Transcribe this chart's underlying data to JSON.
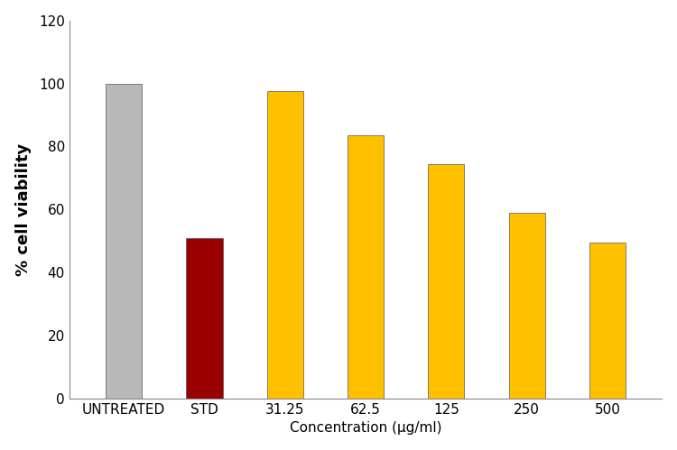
{
  "categories": [
    "UNTREATED",
    "STD",
    "31.25",
    "62.5",
    "125",
    "250",
    "500"
  ],
  "values": [
    100,
    51,
    97.5,
    83.5,
    74.5,
    59,
    49.5
  ],
  "bar_colors": [
    "#b8b8b8",
    "#9b0000",
    "#ffc000",
    "#ffc000",
    "#ffc000",
    "#ffc000",
    "#ffc000"
  ],
  "bar_edge_color": "#555555",
  "bar_edge_width": 0.5,
  "ylabel": "% cell viability",
  "xlabel": "Concentration (µg/ml)",
  "ylim": [
    0,
    120
  ],
  "yticks": [
    0,
    20,
    40,
    60,
    80,
    100,
    120
  ],
  "background_color": "#ffffff",
  "bar_width": 0.45,
  "ylabel_fontsize": 13,
  "xlabel_fontsize": 11,
  "tick_fontsize": 11,
  "ylabel_fontweight": "bold",
  "xlabel_fontweight": "normal"
}
